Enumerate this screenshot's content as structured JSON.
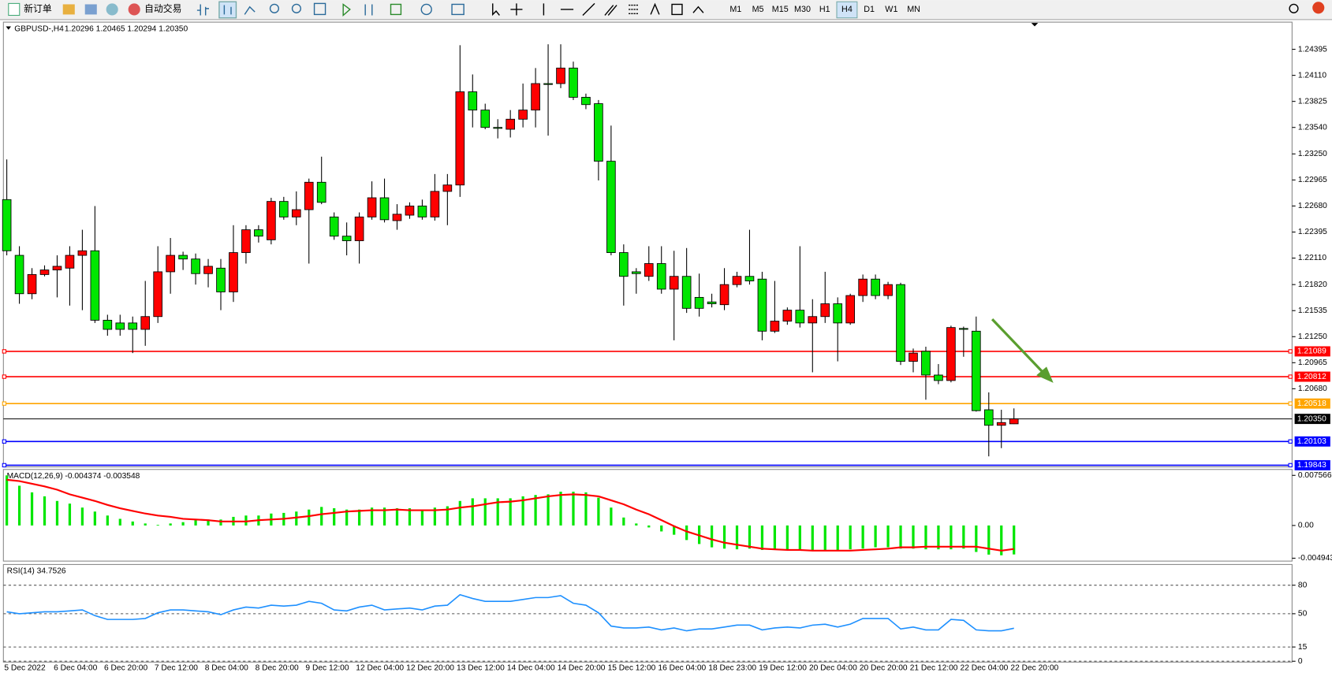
{
  "toolbar": {
    "new_order": "新订单",
    "auto_trade": "自动交易",
    "timeframes": [
      "M1",
      "M5",
      "M15",
      "M30",
      "H1",
      "H4",
      "D1",
      "W1",
      "MN"
    ],
    "selected_timeframe": "H4"
  },
  "chart_data": [
    {
      "type": "candlestick",
      "title": "GBPUSD-,H4",
      "subtitle": "1.20296 1.20465 1.20294 1.20350",
      "up_color": "#ff0000",
      "down_color": "#00e600",
      "categories": [
        "5 Dec 2022",
        null,
        null,
        null,
        "6 Dec 04:00",
        null,
        null,
        null,
        "6 Dec 20:00",
        null,
        null,
        null,
        "7 Dec 12:00",
        null,
        null,
        null,
        "8 Dec 04:00",
        null,
        null,
        null,
        "8 Dec 20:00",
        null,
        null,
        null,
        "9 Dec 12:00",
        null,
        null,
        null,
        "12 Dec 04:00",
        null,
        null,
        null,
        "12 Dec 20:00",
        null,
        null,
        null,
        "13 Dec 12:00",
        null,
        null,
        null,
        "14 Dec 04:00",
        null,
        null,
        null,
        "14 Dec 20:00",
        null,
        null,
        null,
        "15 Dec 12:00",
        null,
        null,
        null,
        "16 Dec 04:00",
        null,
        null,
        null,
        "18 Dec 23:00",
        null,
        null,
        null,
        "19 Dec 12:00",
        null,
        null,
        null,
        "20 Dec 04:00",
        null,
        null,
        null,
        "20 Dec 20:00",
        null,
        null,
        null,
        "21 Dec 12:00",
        null,
        null,
        null,
        "22 Dec 04:00",
        null,
        null,
        null,
        "22 Dec 20:00"
      ],
      "values": [
        [
          1.2275,
          1.2319,
          1.2214,
          1.2219
        ],
        [
          1.2214,
          1.2224,
          1.2161,
          1.2172
        ],
        [
          1.2172,
          1.22,
          1.2166,
          1.2193
        ],
        [
          1.2193,
          1.2203,
          1.2191,
          1.2198
        ],
        [
          1.2198,
          1.2214,
          1.2168,
          1.2202
        ],
        [
          1.22,
          1.2224,
          1.2159,
          1.2214
        ],
        [
          1.2214,
          1.2242,
          1.2154,
          1.2219
        ],
        [
          1.2219,
          1.2268,
          1.214,
          1.2143
        ],
        [
          1.2143,
          1.2149,
          1.2126,
          1.2133
        ],
        [
          1.214,
          1.2149,
          1.2126,
          1.2133
        ],
        [
          1.214,
          1.2147,
          1.2107,
          1.2133
        ],
        [
          1.2133,
          1.2186,
          1.2115,
          1.2147
        ],
        [
          1.2147,
          1.2224,
          1.214,
          1.2196
        ],
        [
          1.2196,
          1.2233,
          1.2172,
          1.2214
        ],
        [
          1.2214,
          1.2218,
          1.2198,
          1.221
        ],
        [
          1.221,
          1.2216,
          1.2182,
          1.2194
        ],
        [
          1.2194,
          1.221,
          1.2179,
          1.2202
        ],
        [
          1.22,
          1.221,
          1.2154,
          1.2174
        ],
        [
          1.2174,
          1.2247,
          1.2163,
          1.2217
        ],
        [
          1.2217,
          1.2247,
          1.2205,
          1.2242
        ],
        [
          1.2242,
          1.2247,
          1.2228,
          1.2235
        ],
        [
          1.2231,
          1.2277,
          1.2226,
          1.2273
        ],
        [
          1.2273,
          1.2278,
          1.2253,
          1.2256
        ],
        [
          1.2256,
          1.2284,
          1.2247,
          1.2264
        ],
        [
          1.2264,
          1.2298,
          1.2205,
          1.2294
        ],
        [
          1.2294,
          1.2322,
          1.227,
          1.2272
        ],
        [
          1.2256,
          1.2261,
          1.2231,
          1.2235
        ],
        [
          1.2235,
          1.225,
          1.2214,
          1.223
        ],
        [
          1.223,
          1.2261,
          1.2205,
          1.2256
        ],
        [
          1.2256,
          1.2295,
          1.2253,
          1.2277
        ],
        [
          1.2277,
          1.2298,
          1.225,
          1.2253
        ],
        [
          1.2252,
          1.227,
          1.2242,
          1.2259
        ],
        [
          1.2258,
          1.2272,
          1.2254,
          1.2268
        ],
        [
          1.2268,
          1.2275,
          1.2253,
          1.2256
        ],
        [
          1.2256,
          1.2303,
          1.2252,
          1.2284
        ],
        [
          1.2284,
          1.2303,
          1.2247,
          1.2291
        ],
        [
          1.2291,
          1.2444,
          1.2278,
          1.2393
        ],
        [
          1.2393,
          1.2412,
          1.2354,
          1.2373
        ],
        [
          1.2373,
          1.238,
          1.2352,
          1.2354
        ],
        [
          1.2354,
          1.2363,
          1.2342,
          1.2353
        ],
        [
          1.2352,
          1.2373,
          1.2343,
          1.2363
        ],
        [
          1.2363,
          1.2402,
          1.2354,
          1.2373
        ],
        [
          1.2373,
          1.2419,
          1.2354,
          1.2402
        ],
        [
          1.2402,
          1.2445,
          1.2345,
          1.2401
        ],
        [
          1.2402,
          1.2445,
          1.2397,
          1.2419
        ],
        [
          1.2419,
          1.2426,
          1.2384,
          1.2387
        ],
        [
          1.2387,
          1.2391,
          1.2374,
          1.2379
        ],
        [
          1.238,
          1.2384,
          1.2296,
          1.2317
        ],
        [
          1.2317,
          1.2356,
          1.2214,
          1.2217
        ],
        [
          1.2217,
          1.2226,
          1.2159,
          1.2191
        ],
        [
          1.2196,
          1.22,
          1.2172,
          1.2194
        ],
        [
          1.2191,
          1.2224,
          1.2186,
          1.2205
        ],
        [
          1.2205,
          1.2224,
          1.2172,
          1.2177
        ],
        [
          1.2177,
          1.2219,
          1.2121,
          1.2191
        ],
        [
          1.2191,
          1.2222,
          1.2151,
          1.2156
        ],
        [
          1.2168,
          1.2194,
          1.2147,
          1.2156
        ],
        [
          1.2163,
          1.2172,
          1.2157,
          1.2161
        ],
        [
          1.216,
          1.22,
          1.2154,
          1.2182
        ],
        [
          1.2182,
          1.2196,
          1.2179,
          1.2191
        ],
        [
          1.2191,
          1.2242,
          1.2182,
          1.2186
        ],
        [
          1.2188,
          1.2196,
          1.2121,
          1.2131
        ],
        [
          1.2131,
          1.2186,
          1.2129,
          1.2142
        ],
        [
          1.2142,
          1.2157,
          1.2138,
          1.2154
        ],
        [
          1.2154,
          1.2224,
          1.2135,
          1.214
        ],
        [
          1.214,
          1.2166,
          1.2086,
          1.2147
        ],
        [
          1.2147,
          1.2196,
          1.214,
          1.2161
        ],
        [
          1.2161,
          1.2168,
          1.2098,
          1.214
        ],
        [
          1.214,
          1.2172,
          1.2138,
          1.217
        ],
        [
          1.217,
          1.2193,
          1.2163,
          1.2188
        ],
        [
          1.2188,
          1.2193,
          1.2166,
          1.217
        ],
        [
          1.217,
          1.2185,
          1.2166,
          1.2182
        ],
        [
          1.2182,
          1.2184,
          1.2094,
          1.2098
        ],
        [
          1.2098,
          1.2112,
          1.2086,
          1.2107
        ],
        [
          1.2109,
          1.2114,
          1.2056,
          1.2083
        ],
        [
          1.2083,
          1.2095,
          1.2073,
          1.2077
        ],
        [
          1.2077,
          1.2137,
          1.2075,
          1.2135
        ],
        [
          1.2134,
          1.2136,
          1.2103,
          1.2133
        ],
        [
          1.2131,
          1.2147,
          1.2043,
          1.2044
        ],
        [
          1.2045,
          1.2064,
          1.1994,
          1.2028
        ],
        [
          1.2028,
          1.2045,
          1.2003,
          1.2031
        ],
        [
          1.20296,
          1.20465,
          1.20294,
          1.2035
        ]
      ],
      "ylim": [
        1.19834,
        1.24683
      ],
      "yticks": [
        1.24395,
        {
          "value": 1.2411,
          "label": "1.24110"
        },
        1.23825,
        {
          "value": 1.2354,
          "label": "1.23540"
        },
        {
          "value": 1.2325,
          "label": "1.23250"
        },
        1.22965,
        {
          "value": 1.2268,
          "label": "1.22680"
        },
        1.22395,
        {
          "value": 1.2211,
          "label": "1.22110"
        },
        {
          "value": 1.2182,
          "label": "1.21820"
        },
        1.21535,
        {
          "value": 1.2125,
          "label": "1.21250"
        },
        1.20965,
        {
          "value": 1.2068,
          "label": "1.20680"
        }
      ],
      "hlines": [
        {
          "value": 1.21089,
          "color": "#ff0000"
        },
        {
          "value": 1.20812,
          "color": "#ff0000"
        },
        {
          "value": 1.20518,
          "color": "#ffa500"
        },
        {
          "value": 1.2035,
          "label": "1.20350",
          "color": "#000000"
        },
        {
          "value": 1.20103,
          "color": "#0000ff"
        },
        {
          "value": 1.19843,
          "color": "#0000ff"
        }
      ],
      "grid": false
    },
    {
      "type": "macd",
      "title": "MACD(12,26,9) -0.004374 -0.003548",
      "series": [
        {
          "color": "#00e600",
          "values": [
            0.00756,
            0.006,
            0.005,
            0.0044,
            0.0037,
            0.0033,
            0.0027,
            0.0021,
            0.0015,
            0.001,
            0.0006,
            0.0003,
            0.0001,
            0.0003,
            0.0005,
            0.0008,
            0.0009,
            0.0009,
            0.0013,
            0.0015,
            0.0015,
            0.0018,
            0.0019,
            0.0021,
            0.0024,
            0.0028,
            0.0026,
            0.0024,
            0.0024,
            0.0027,
            0.0027,
            0.0026,
            0.0026,
            0.0024,
            0.0027,
            0.0029,
            0.0037,
            0.0041,
            0.0041,
            0.0041,
            0.0041,
            0.0044,
            0.0046,
            0.0047,
            0.0051,
            0.0051,
            0.005,
            0.0042,
            0.0027,
            0.0012,
            0.0003,
            -0.0003,
            -0.0009,
            -0.0014,
            -0.0022,
            -0.0028,
            -0.0033,
            -0.0035,
            -0.0036,
            -0.0035,
            -0.0037,
            -0.0037,
            -0.0037,
            -0.0037,
            -0.0038,
            -0.0037,
            -0.0037,
            -0.0036,
            -0.0035,
            -0.0033,
            -0.0033,
            -0.0035,
            -0.0035,
            -0.0036,
            -0.0036,
            -0.0036,
            -0.0035,
            -0.004,
            -0.0044,
            -0.0045,
            -0.004374
          ]
        },
        {
          "color": "#ff0000",
          "values": [
            0.0069,
            0.0067,
            0.0063,
            0.0059,
            0.0054,
            0.0047,
            0.0042,
            0.0037,
            0.0031,
            0.0026,
            0.0022,
            0.0018,
            0.0015,
            0.0013,
            0.001,
            0.0009,
            0.0008,
            0.0006,
            0.0006,
            0.0006,
            0.0008,
            0.0009,
            0.001,
            0.0012,
            0.0014,
            0.0017,
            0.0019,
            0.0021,
            0.0022,
            0.0023,
            0.0023,
            0.0024,
            0.0023,
            0.0023,
            0.0023,
            0.0024,
            0.0027,
            0.0029,
            0.0032,
            0.0035,
            0.0036,
            0.0038,
            0.0041,
            0.0044,
            0.0046,
            0.0047,
            0.0046,
            0.0044,
            0.0038,
            0.0032,
            0.0024,
            0.0017,
            0.0008,
            -0.0001,
            -0.0009,
            -0.0015,
            -0.0021,
            -0.0026,
            -0.0029,
            -0.0032,
            -0.0035,
            -0.0036,
            -0.0037,
            -0.0037,
            -0.0038,
            -0.0038,
            -0.0038,
            -0.0038,
            -0.0037,
            -0.0036,
            -0.0035,
            -0.0033,
            -0.0033,
            -0.0032,
            -0.0032,
            -0.0032,
            -0.0032,
            -0.0032,
            -0.0035,
            -0.0038,
            -0.003548
          ]
        }
      ],
      "ylim": [
        -0.00538,
        0.00846
      ],
      "yticks": [
        0.007566,
        {
          "value": 0,
          "label": "0.00"
        },
        -0.004943
      ]
    },
    {
      "type": "line",
      "title": "RSI(14) 34.7526",
      "series": [
        {
          "color": "#1e90ff",
          "values": [
            52,
            50,
            51,
            52,
            52,
            53,
            54,
            48,
            44,
            44,
            44,
            45,
            51,
            54,
            54,
            53,
            52,
            49,
            54,
            57,
            56,
            59,
            58,
            59,
            63,
            61,
            54,
            53,
            57,
            59,
            54,
            55,
            56,
            54,
            58,
            59,
            70,
            66,
            63,
            63,
            63,
            65,
            67,
            67,
            69,
            61,
            59,
            51,
            37,
            35,
            35,
            36,
            33,
            35,
            32,
            34,
            34,
            36,
            38,
            38,
            33,
            35,
            36,
            35,
            38,
            39,
            36,
            39,
            45,
            45,
            45,
            34,
            36,
            33,
            33,
            44,
            43,
            33,
            32,
            32,
            34.7526
          ]
        }
      ],
      "ylim": [
        0,
        100
      ],
      "yticks": [
        80,
        50,
        15,
        0
      ],
      "grid": "dashed"
    }
  ]
}
